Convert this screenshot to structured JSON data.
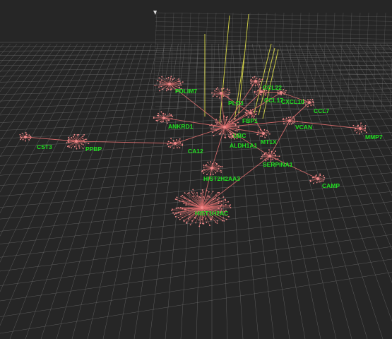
{
  "colors": {
    "background": "#262626",
    "grid": "#8a8a8a",
    "edge": "#e07070",
    "node": "#f08a8a",
    "label": "#22dd22",
    "highlight": "#e8e84a"
  },
  "nodes": [
    {
      "id": "PDLIM7",
      "label": "PDLIM7"
    },
    {
      "id": "CCL22",
      "label": "CCL22"
    },
    {
      "id": "CCL17",
      "label": "CCL17"
    },
    {
      "id": "CXCL10",
      "label": "CXCL10"
    },
    {
      "id": "PLD3",
      "label": "PLD3"
    },
    {
      "id": "CCL7",
      "label": "CCL7"
    },
    {
      "id": "FBP1",
      "label": "FBP1"
    },
    {
      "id": "ANKRD1",
      "label": "ANKRD1"
    },
    {
      "id": "UBC",
      "label": "UBC"
    },
    {
      "id": "VCAN",
      "label": "VCAN"
    },
    {
      "id": "ALDH1A1",
      "label": "ALDH1A1"
    },
    {
      "id": "MT1X",
      "label": "MT1X"
    },
    {
      "id": "MMP7",
      "label": "MMP7"
    },
    {
      "id": "CST3",
      "label": "CST3"
    },
    {
      "id": "PPBP",
      "label": "PPBP"
    },
    {
      "id": "CA12",
      "label": "CA12"
    },
    {
      "id": "SERPINA1",
      "label": "SERPINA1"
    },
    {
      "id": "HIST2H2AA3",
      "label": "HIST2H2AA3"
    },
    {
      "id": "CAMP",
      "label": "CAMP"
    },
    {
      "id": "HIST1H2AC",
      "label": "HIST1H2AC"
    }
  ],
  "edges": [
    [
      "UBC",
      "PDLIM7"
    ],
    [
      "UBC",
      "PLD3"
    ],
    [
      "UBC",
      "FBP1"
    ],
    [
      "UBC",
      "ANKRD1"
    ],
    [
      "UBC",
      "CA12"
    ],
    [
      "UBC",
      "HIST2H2AA3"
    ],
    [
      "UBC",
      "SERPINA1"
    ],
    [
      "UBC",
      "MT1X"
    ],
    [
      "UBC",
      "ALDH1A1"
    ],
    [
      "UBC",
      "CCL22"
    ],
    [
      "UBC",
      "CCL17"
    ],
    [
      "UBC",
      "CXCL10"
    ],
    [
      "UBC",
      "VCAN"
    ],
    [
      "CA12",
      "PPBP"
    ],
    [
      "PPBP",
      "CST3"
    ],
    [
      "VCAN",
      "MMP7"
    ],
    [
      "VCAN",
      "CCL7"
    ],
    [
      "SERPINA1",
      "CAMP"
    ],
    [
      "HIST2H2AA3",
      "HIST1H2AC"
    ],
    [
      "CCL22",
      "CCL17"
    ],
    [
      "CCL17",
      "CXCL10"
    ],
    [
      "CXCL10",
      "CCL7"
    ],
    [
      "FBP1",
      "MT1X"
    ],
    [
      "PLD3",
      "FBP1"
    ],
    [
      "SERPINA1",
      "VCAN"
    ],
    [
      "SERPINA1",
      "HIST1H2AC"
    ]
  ]
}
